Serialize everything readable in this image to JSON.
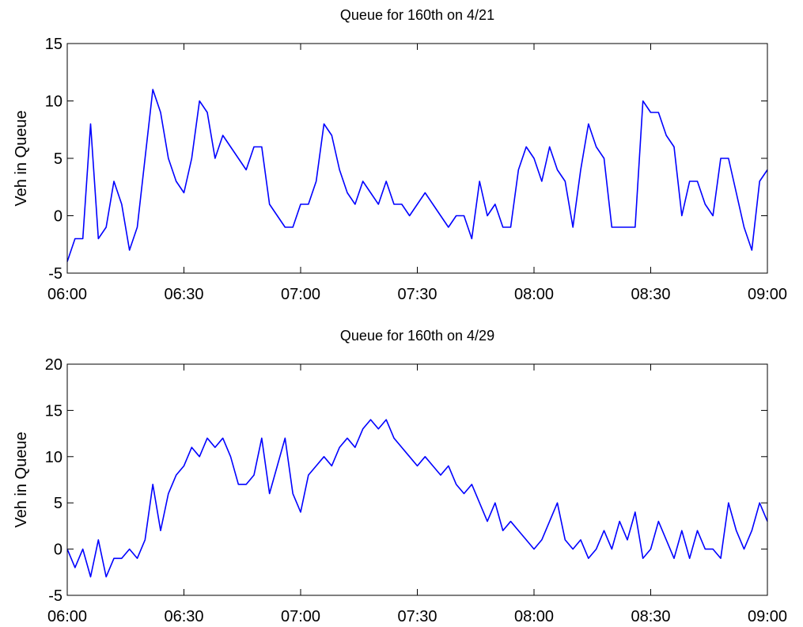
{
  "chart_data": [
    {
      "type": "line",
      "title": "Queue for 160th on 4/21",
      "y_label": "Veh in Queue",
      "x": [
        "06:00",
        "06:02",
        "06:04",
        "06:06",
        "06:08",
        "06:10",
        "06:12",
        "06:14",
        "06:16",
        "06:18",
        "06:20",
        "06:22",
        "06:24",
        "06:26",
        "06:28",
        "06:30",
        "06:32",
        "06:34",
        "06:36",
        "06:38",
        "06:40",
        "06:42",
        "06:44",
        "06:46",
        "06:48",
        "06:50",
        "06:52",
        "06:54",
        "06:56",
        "06:58",
        "07:00",
        "07:02",
        "07:04",
        "07:06",
        "07:08",
        "07:10",
        "07:12",
        "07:14",
        "07:16",
        "07:18",
        "07:20",
        "07:22",
        "07:24",
        "07:26",
        "07:28",
        "07:30",
        "07:32",
        "07:34",
        "07:36",
        "07:38",
        "07:40",
        "07:42",
        "07:44",
        "07:46",
        "07:48",
        "07:50",
        "07:52",
        "07:54",
        "07:56",
        "07:58",
        "08:00",
        "08:02",
        "08:04",
        "08:06",
        "08:08",
        "08:10",
        "08:12",
        "08:14",
        "08:16",
        "08:18",
        "08:20",
        "08:22",
        "08:24",
        "08:26",
        "08:28",
        "08:30",
        "08:32",
        "08:34",
        "08:36",
        "08:38",
        "08:40",
        "08:42",
        "08:44",
        "08:46",
        "08:48",
        "08:50",
        "08:52",
        "08:54",
        "08:56",
        "08:58",
        "09:00"
      ],
      "series": [
        {
          "color": "#0000ff",
          "values": [
            -4,
            -2,
            -2,
            8,
            -2,
            -1,
            3,
            1,
            -3,
            -1,
            5,
            11,
            9,
            5,
            3,
            2,
            5,
            10,
            9,
            5,
            7,
            6,
            5,
            4,
            6,
            6,
            1,
            0,
            -1,
            -1,
            1,
            1,
            3,
            8,
            7,
            4,
            2,
            1,
            3,
            2,
            1,
            3,
            1,
            1,
            0,
            1,
            2,
            1,
            0,
            -1,
            0,
            0,
            -2,
            3,
            0,
            1,
            -1,
            -1,
            4,
            6,
            5,
            3,
            6,
            4,
            3,
            -1,
            4,
            8,
            6,
            5,
            -1,
            -1,
            -1,
            -1,
            10,
            9,
            9,
            7,
            6,
            0,
            3,
            3,
            1,
            0,
            5,
            5,
            2,
            -1,
            -3,
            3,
            4
          ]
        }
      ],
      "xlim": [
        "06:00",
        "09:00"
      ],
      "xticks": [
        "06:00",
        "06:30",
        "07:00",
        "07:30",
        "08:00",
        "08:30",
        "09:00"
      ],
      "ylim": [
        -5,
        15
      ],
      "yticks": [
        -5,
        0,
        5,
        10,
        15
      ],
      "grid": false
    },
    {
      "type": "line",
      "title": "Queue for 160th on 4/29",
      "y_label": "Veh in Queue",
      "x": [
        "06:00",
        "06:02",
        "06:04",
        "06:06",
        "06:08",
        "06:10",
        "06:12",
        "06:14",
        "06:16",
        "06:18",
        "06:20",
        "06:22",
        "06:24",
        "06:26",
        "06:28",
        "06:30",
        "06:32",
        "06:34",
        "06:36",
        "06:38",
        "06:40",
        "06:42",
        "06:44",
        "06:46",
        "06:48",
        "06:50",
        "06:52",
        "06:54",
        "06:56",
        "06:58",
        "07:00",
        "07:02",
        "07:04",
        "07:06",
        "07:08",
        "07:10",
        "07:12",
        "07:14",
        "07:16",
        "07:18",
        "07:20",
        "07:22",
        "07:24",
        "07:26",
        "07:28",
        "07:30",
        "07:32",
        "07:34",
        "07:36",
        "07:38",
        "07:40",
        "07:42",
        "07:44",
        "07:46",
        "07:48",
        "07:50",
        "07:52",
        "07:54",
        "07:56",
        "07:58",
        "08:00",
        "08:02",
        "08:04",
        "08:06",
        "08:08",
        "08:10",
        "08:12",
        "08:14",
        "08:16",
        "08:18",
        "08:20",
        "08:22",
        "08:24",
        "08:26",
        "08:28",
        "08:30",
        "08:32",
        "08:34",
        "08:36",
        "08:38",
        "08:40",
        "08:42",
        "08:44",
        "08:46",
        "08:48",
        "08:50",
        "08:52",
        "08:54",
        "08:56",
        "08:58",
        "09:00"
      ],
      "series": [
        {
          "color": "#0000ff",
          "values": [
            0,
            -2,
            0,
            -3,
            1,
            -3,
            -1,
            -1,
            0,
            -1,
            1,
            7,
            2,
            6,
            8,
            9,
            11,
            10,
            12,
            11,
            12,
            10,
            7,
            7,
            8,
            12,
            6,
            9,
            12,
            6,
            4,
            8,
            9,
            10,
            9,
            11,
            12,
            11,
            13,
            14,
            13,
            14,
            12,
            11,
            10,
            9,
            10,
            9,
            8,
            9,
            7,
            6,
            7,
            5,
            3,
            5,
            2,
            3,
            2,
            1,
            0,
            1,
            3,
            5,
            1,
            0,
            1,
            -1,
            0,
            2,
            0,
            3,
            1,
            4,
            -1,
            0,
            3,
            1,
            -1,
            2,
            -1,
            2,
            0,
            0,
            -1,
            5,
            2,
            0,
            2,
            5,
            3
          ]
        }
      ],
      "xlim": [
        "06:00",
        "09:00"
      ],
      "xticks": [
        "06:00",
        "06:30",
        "07:00",
        "07:30",
        "08:00",
        "08:30",
        "09:00"
      ],
      "ylim": [
        -5,
        20
      ],
      "yticks": [
        -5,
        0,
        5,
        10,
        15,
        20
      ],
      "grid": false
    }
  ]
}
